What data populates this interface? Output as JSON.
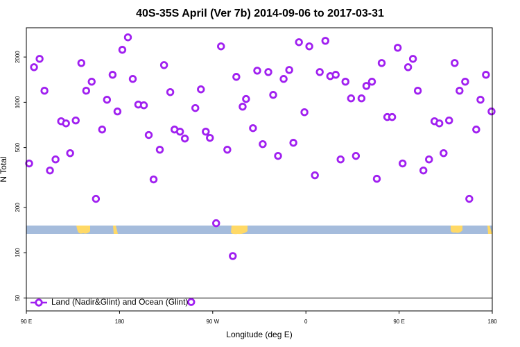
{
  "chart_data": {
    "type": "scatter",
    "title": "40S-35S April (Ver 7b)   2014-09-06 to 2017-03-31",
    "x_label": "Longitude (deg E)",
    "y_label": "N Total",
    "log_y": true,
    "xlim": [
      90,
      540
    ],
    "ylim": [
      41,
      3130
    ],
    "xticks": [
      {
        "value": 90,
        "label": "90 E"
      },
      180,
      {
        "value": 270,
        "label": "90 W"
      },
      {
        "value": 360,
        "label": "0"
      },
      {
        "value": 450,
        "label": "90 E"
      },
      {
        "value": 540,
        "label": "180"
      }
    ],
    "yticks": [
      50,
      100,
      200,
      500,
      1000,
      2000
    ],
    "reference_line": 50,
    "legend": "bottom-left",
    "series": [
      {
        "name": "Land (Nadir&Glint) and Ocean (Glint)",
        "color": "#a020f0",
        "x": [
          92.7,
          97.4,
          102.8,
          107.5,
          112.8,
          118.2,
          123.6,
          128.3,
          132.3,
          137.7,
          143.1,
          147.8,
          153.1,
          157.2,
          163.2,
          167.9,
          173.3,
          178.0,
          182.7,
          188.1,
          192.8,
          198.1,
          203.5,
          208.2,
          212.9,
          218.9,
          223.0,
          229.0,
          233.1,
          238.4,
          243.1,
          249.2,
          253.2,
          258.6,
          263.3,
          267.3,
          273.3,
          278.0,
          284.1,
          289.4,
          292.8,
          298.9,
          302.2,
          308.9,
          313.0,
          318.3,
          323.7,
          328.4,
          333.1,
          338.5,
          343.9,
          347.9,
          353.3,
          358.6,
          363.3,
          368.7,
          373.4,
          378.8,
          383.5,
          388.8,
          393.5,
          398.2,
          403.6,
          408.3,
          413.7,
          418.4,
          423.8,
          428.5,
          433.2,
          438.6,
          443.3,
          448.7,
          453.4,
          458.7,
          463.4,
          468.1,
          473.5,
          478.9,
          484.2,
          488.9,
          493.0,
          498.3,
          503.7,
          508.4,
          513.8,
          517.8,
          524.5,
          528.6,
          533.9,
          539.3
        ],
        "values": [
          392,
          1712,
          1945,
          1194,
          352,
          417,
          748,
          724,
          459,
          757,
          1824,
          1194,
          1371,
          228,
          659,
          1040,
          1524,
          869,
          2234,
          2704,
          1430,
          966,
          955,
          606,
          307,
          484,
          1767,
          1169,
          659,
          638,
          574,
          47,
          916,
          1219,
          638,
          580,
          157,
          2355,
          484,
          95,
          1476,
          935,
          1052,
          673,
          1623,
          527,
          1589,
          1120,
          440,
          1430,
          1640,
          538,
          2510,
          859,
          2355,
          327,
          1589,
          2563,
          1492,
          1524,
          417,
          1371,
          1062,
          440,
          1062,
          1285,
          1371,
          310,
          1824,
          798,
          798,
          2305,
          392,
          1712,
          1945,
          1194,
          352,
          417,
          748,
          724,
          459,
          757,
          1824,
          1194,
          1371,
          228,
          659,
          1040,
          1524,
          869
        ]
      }
    ]
  }
}
